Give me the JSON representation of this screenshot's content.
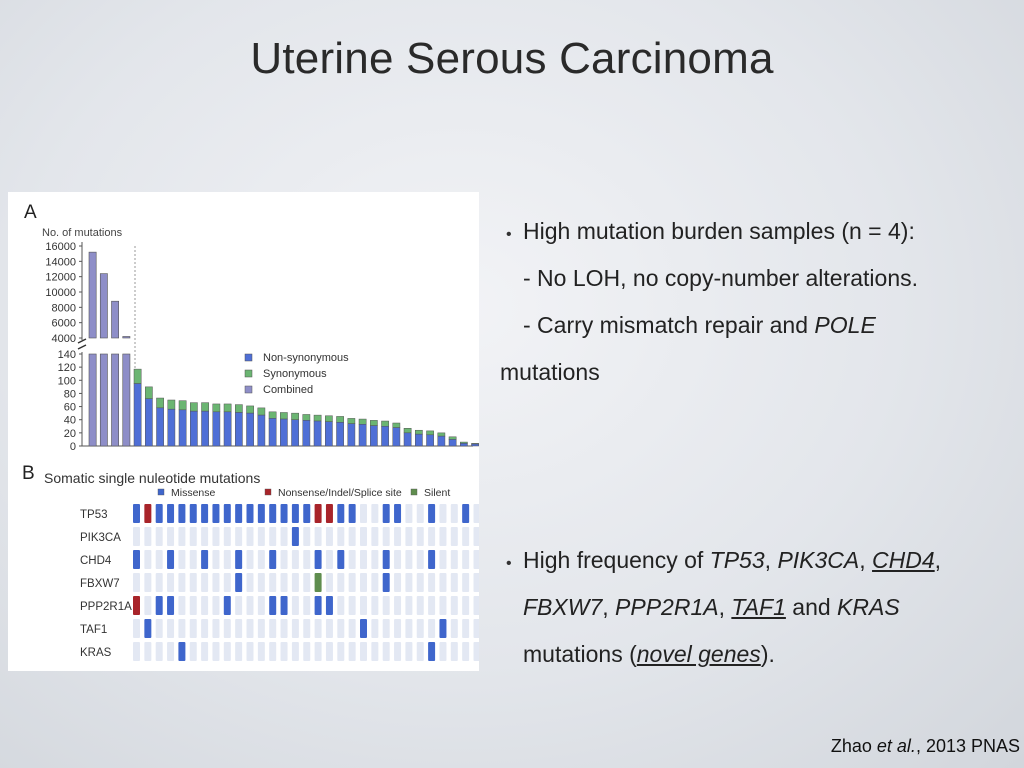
{
  "slide": {
    "title": "Uterine Serous Carcinoma",
    "citation": {
      "author": "Zhao",
      "etal": "et al.",
      "rest": ", 2013 PNAS"
    }
  },
  "bullets": {
    "b1": {
      "line1": "High mutation burden samples (n = 4):",
      "line2": "- No LOH, no copy-number alterations.",
      "line3a": "- Carry mismatch repair and ",
      "line3b": "POLE",
      "line4": "mutations"
    },
    "b2": {
      "l1a": "High frequency of ",
      "l1b": "TP53",
      "l1c": ", ",
      "l1d": "PIK3CA",
      "l1e": ", ",
      "l1f": "CHD4",
      "l1g": ",",
      "l2a": "FBXW7",
      "l2b": ", ",
      "l2c": "PPP2R1A",
      "l2d": ", ",
      "l2e": "TAF1",
      "l2f": " and ",
      "l2g": "KRAS",
      "l3a": "mutations (",
      "l3b": "novel genes",
      "l3c": ")."
    }
  },
  "figure": {
    "panel_a_label": "A",
    "panel_b_label": "B",
    "chart_data": [
      {
        "type": "bar",
        "ylabel": "No. of mutations",
        "yticks_upper": [
          4000,
          6000,
          8000,
          10000,
          12000,
          14000,
          16000
        ],
        "yticks_lower": [
          0,
          20,
          40,
          60,
          80,
          100,
          120,
          140
        ],
        "legend": [
          "Non-synonymous",
          "Synonymous",
          "Combined"
        ],
        "colors": {
          "nonsyn": "#4f6fd6",
          "syn": "#6bb572",
          "combined": "#8e8ec8"
        },
        "high_samples": [
          15200,
          12400,
          8800,
          4200
        ],
        "series": [
          {
            "name": "Non-synonymous",
            "values": [
              95,
              72,
              58,
              56,
              55,
              53,
              53,
              52,
              52,
              51,
              50,
              47,
              42,
              41,
              40,
              39,
              38,
              37,
              36,
              34,
              33,
              31,
              30,
              28,
              20,
              18,
              17,
              15,
              10,
              4,
              3,
              2
            ]
          },
          {
            "name": "Synonymous",
            "values": [
              22,
              18,
              15,
              14,
              14,
              13,
              13,
              12,
              12,
              12,
              11,
              11,
              10,
              10,
              10,
              9,
              9,
              9,
              9,
              8,
              8,
              8,
              8,
              7,
              7,
              6,
              6,
              5,
              4,
              2,
              1,
              1
            ]
          }
        ]
      },
      {
        "type": "heatmap",
        "title": "Somatic single nuleotide mutations",
        "legend": [
          "Missense",
          "Nonsense/Indel/Splice site",
          "Silent"
        ],
        "colors": {
          "empty": "#e3e8f3",
          "missense": "#3f66cc",
          "nonsense": "#a8242a",
          "silent": "#5f8d4e"
        },
        "rows": [
          "TP53",
          "PIK3CA",
          "CHD4",
          "FBXW7",
          "PPP2R1A",
          "TAF1",
          "KRAS"
        ],
        "cells": [
          "M N M M M M M M M M M M M M M M N N M M . . M M . . M . . M . .",
          ". . . . . . . . . . . . . . M . . . . . . . . . . . . . . . . .",
          "M . . M . . M . . M . . M . . . M . M . . . M . . . M . . . . .",
          ". . . . . . . . . M . . . . . . S . . . . . M . . . . . . . . .",
          "N . M M . . . . M . . . M M . . M M . . . . . . . . . . . . . .",
          ". M . . . . . . . . . . . . . . . . . . M . . . . . . M . . . .",
          ". . . . M . . . . . . . . . . . . . . . . . . . . . M . . . . ."
        ]
      }
    ]
  }
}
